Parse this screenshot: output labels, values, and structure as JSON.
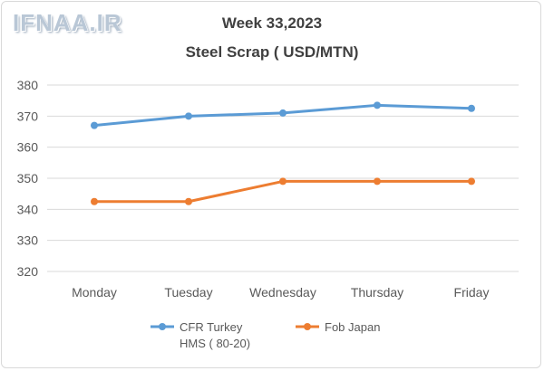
{
  "watermark": "IFNAA.IR",
  "chart_data": {
    "type": "line",
    "title": "Week 33,2023",
    "subtitle": "Steel Scrap ( USD/MTN)",
    "categories": [
      "Monday",
      "Tuesday",
      "Wednesday",
      "Thursday",
      "Friday"
    ],
    "ylim": [
      320,
      380
    ],
    "yticks": [
      320,
      330,
      340,
      350,
      360,
      370,
      380
    ],
    "grid": true,
    "legend_position": "bottom",
    "series": [
      {
        "name": "CFR Turkey HMS ( 80-20)",
        "name_lines": [
          "CFR Turkey",
          "HMS ( 80-20)"
        ],
        "color": "#5b9bd5",
        "values": [
          367,
          370,
          371,
          373.5,
          372.5
        ]
      },
      {
        "name": "Fob Japan",
        "name_lines": [
          "Fob Japan"
        ],
        "color": "#ed7d31",
        "values": [
          342.5,
          342.5,
          349,
          349,
          349
        ]
      }
    ]
  }
}
